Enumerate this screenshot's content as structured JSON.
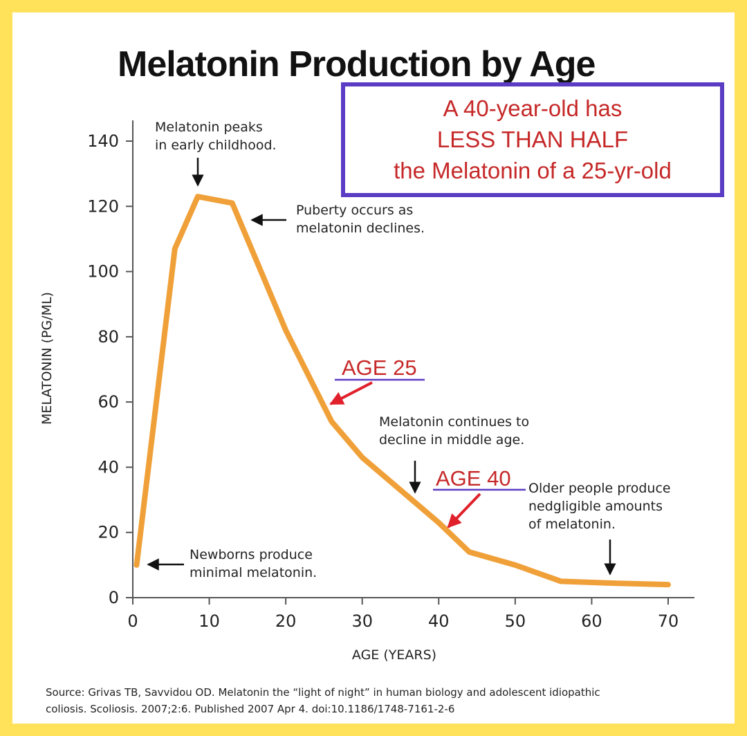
{
  "chart_data": {
    "type": "line",
    "title": "Melatonin Production by Age",
    "xlabel": "AGE (YEARS)",
    "ylabel": "MELATONIN (PG/ML)",
    "xlim": [
      0,
      70
    ],
    "ylim": [
      0,
      140
    ],
    "x_ticks": [
      "0",
      "10",
      "20",
      "30",
      "40",
      "50",
      "60",
      "70"
    ],
    "y_ticks": [
      "0",
      "20",
      "40",
      "60",
      "80",
      "100",
      "120",
      "140"
    ],
    "grid": false,
    "series": [
      {
        "color": "#F0A038",
        "x": [
          0.5,
          5.5,
          8.5,
          13,
          20,
          26,
          30,
          35,
          40,
          44,
          50,
          56,
          62,
          70
        ],
        "y": [
          10,
          107,
          123,
          121,
          82,
          54,
          43,
          33,
          23,
          14,
          10,
          5,
          4.5,
          4
        ]
      }
    ],
    "annotations": {
      "peak": [
        "Melatonin peaks",
        "in early childhood."
      ],
      "puberty": [
        "Puberty occurs as",
        "melatonin declines."
      ],
      "middle": [
        "Melatonin continues to",
        "decline in middle age."
      ],
      "older": [
        "Older people produce",
        "nedgligible amounts",
        "of melatonin."
      ],
      "newborn": [
        "Newborns produce",
        "minimal melatonin."
      ]
    },
    "callout_box": [
      "A 40-year-old has",
      "LESS THAN HALF",
      "the Melatonin of a 25-yr-old"
    ],
    "age_markers": [
      "AGE 25",
      "AGE 40"
    ],
    "source": [
      "Source: Grivas TB, Savvidou OD. Melatonin the “light of night” in human biology and adolescent idiopathic",
      "coliosis. Scoliosis. 2007;2:6. Published 2007 Apr 4. doi:10.1186/1748-7161-2-6"
    ]
  },
  "colors": {
    "frame": "#FFE15A",
    "line": "#F0A038",
    "callout_text": "#C62828",
    "callout_border": "#5B3CC4",
    "underline": "#5B3CC4",
    "red_arrow": "#E0202A"
  }
}
